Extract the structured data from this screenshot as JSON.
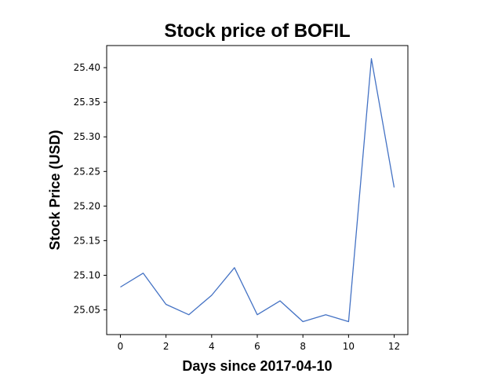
{
  "chart_data": {
    "type": "line",
    "title": "Stock price of BOFIL",
    "xlabel": "Days since 2017-04-10",
    "ylabel": "Stock Price (USD)",
    "x": [
      0,
      1,
      2,
      3,
      4,
      5,
      6,
      7,
      8,
      9,
      10,
      11,
      12
    ],
    "series": [
      {
        "values": [
          25.083,
          25.103,
          25.058,
          25.043,
          25.071,
          25.111,
          25.043,
          25.063,
          25.033,
          25.043,
          25.033,
          25.413,
          25.227
        ],
        "color": "#4472c4"
      }
    ],
    "xticks": [
      "0",
      "2",
      "4",
      "6",
      "8",
      "10",
      "12"
    ],
    "yticks": [
      "25.05",
      "25.10",
      "25.15",
      "25.20",
      "25.25",
      "25.30",
      "25.35",
      "25.40"
    ],
    "xlim": [
      -0.6,
      12.6
    ],
    "ylim": [
      25.0143,
      25.4319
    ],
    "grid": false,
    "legend": "none"
  }
}
